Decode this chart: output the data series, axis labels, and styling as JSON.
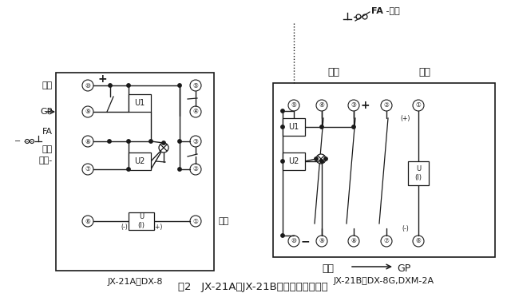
{
  "title": "图2   JX-21A、JX-21B接线图（正视图）",
  "label_A": "JX-21A代DX-8",
  "label_B": "JX-21B代DX-8G,DXM-2A",
  "left_labels": {
    "dianYuan_top": "电源",
    "GP": "GP",
    "FA": "FA",
    "fuGui": "复归",
    "dianYuan_bot": "电源-"
  },
  "right_labels": {
    "dianYuan": "电源",
    "qiDong_top": "启动",
    "dianYuan_bot": "电源",
    "GP": "GP",
    "qiDong_right": "启动",
    "FA_fuGui": "FA -复归"
  },
  "bg_color": "#ffffff",
  "lc": "#1a1a1a",
  "tc": "#1a1a1a"
}
